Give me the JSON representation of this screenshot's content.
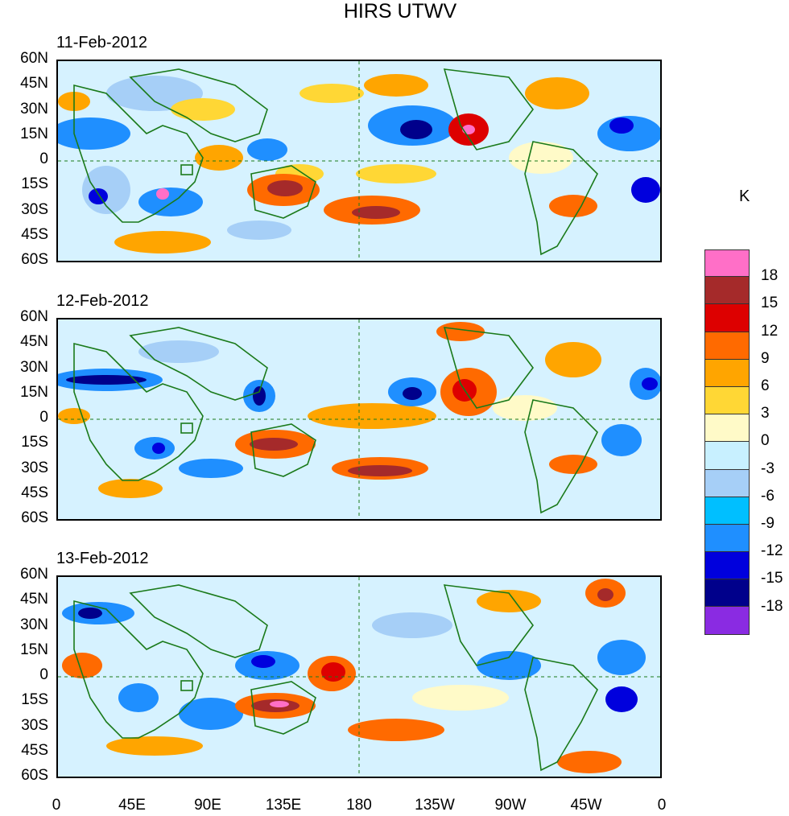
{
  "title": "HIRS UTWV",
  "unit": "K",
  "panels": [
    {
      "date": "11-Feb-2012"
    },
    {
      "date": "12-Feb-2012"
    },
    {
      "date": "13-Feb-2012"
    }
  ],
  "lat_labels": [
    "60N",
    "45N",
    "30N",
    "15N",
    "0",
    "15S",
    "30S",
    "45S",
    "60S"
  ],
  "lon_labels": [
    "0",
    "45E",
    "90E",
    "135E",
    "180",
    "135W",
    "90W",
    "45W",
    "0"
  ],
  "legend": {
    "colors": [
      "#ff6fc7",
      "#a52a2a",
      "#dd0000",
      "#ff6a00",
      "#ffa500",
      "#ffd735",
      "#fffac8",
      "#c8f0ff",
      "#a6cff7",
      "#00bfff",
      "#1f8fff",
      "#0000dd",
      "#00008b",
      "#8a2be2"
    ],
    "labels": [
      "18",
      "15",
      "12",
      "9",
      "6",
      "3",
      "0",
      "-3",
      "-6",
      "-9",
      "-12",
      "-15",
      "-18"
    ]
  },
  "map_colors": {
    "coast": "#1a7a1a",
    "background": "#c8f0ff"
  }
}
